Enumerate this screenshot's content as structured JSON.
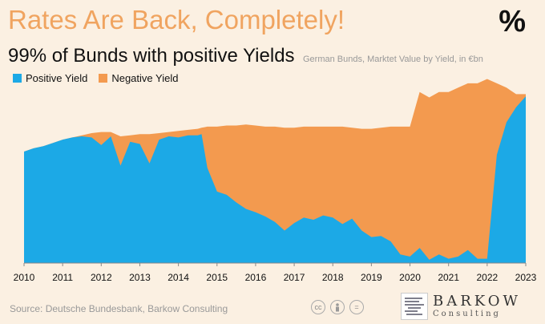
{
  "headline": "Rates Are Back, Completely!",
  "percent_mark": "%",
  "subtitle": "99% of Bunds with positive Yields",
  "subtitle_note": "German Bunds, Marktet Value by Yield, in €bn",
  "source": "Source: Deutsche Bundesbank, Barkow Consulting",
  "license_icons": [
    "cc",
    "person",
    "="
  ],
  "logo": {
    "name": "BARKOW",
    "sub": "Consulting"
  },
  "colors": {
    "positive": "#1ca9e6",
    "negative": "#f39a4f",
    "background": "#fbf0e2"
  },
  "chart_data": {
    "type": "area",
    "stacked": true,
    "x_ticks": [
      "2010",
      "2011",
      "2012",
      "2013",
      "2014",
      "2015",
      "2016",
      "2017",
      "2018",
      "2019",
      "2020",
      "2021",
      "2022",
      "2023"
    ],
    "xlim": [
      2010,
      2023
    ],
    "legend_position": "top-left",
    "grid": false,
    "x": [
      2010.0,
      2010.25,
      2010.5,
      2010.75,
      2011.0,
      2011.25,
      2011.5,
      2011.75,
      2012.0,
      2012.25,
      2012.5,
      2012.75,
      2013.0,
      2013.25,
      2013.5,
      2013.75,
      2014.0,
      2014.25,
      2014.5,
      2014.6,
      2014.75,
      2015.0,
      2015.25,
      2015.5,
      2015.75,
      2016.0,
      2016.25,
      2016.5,
      2016.75,
      2017.0,
      2017.25,
      2017.5,
      2017.75,
      2018.0,
      2018.25,
      2018.5,
      2018.75,
      2019.0,
      2019.25,
      2019.5,
      2019.75,
      2020.0,
      2020.25,
      2020.5,
      2020.75,
      2021.0,
      2021.25,
      2021.5,
      2021.75,
      2022.0,
      2022.25,
      2022.5,
      2022.75,
      2023.0
    ],
    "series": [
      {
        "name": "Positive Yield",
        "values": [
          1030,
          1060,
          1080,
          1110,
          1140,
          1160,
          1170,
          1160,
          1090,
          1170,
          900,
          1120,
          1100,
          920,
          1140,
          1170,
          1160,
          1180,
          1180,
          1190,
          880,
          660,
          630,
          560,
          500,
          470,
          430,
          380,
          300,
          370,
          420,
          400,
          440,
          420,
          360,
          410,
          300,
          240,
          250,
          200,
          80,
          60,
          140,
          30,
          80,
          40,
          60,
          120,
          40,
          40,
          1000,
          1300,
          1440,
          1540
        ]
      },
      {
        "name": "Negative Yield",
        "values": [
          0,
          0,
          0,
          0,
          0,
          0,
          10,
          40,
          120,
          40,
          270,
          60,
          90,
          270,
          60,
          40,
          60,
          50,
          60,
          60,
          380,
          600,
          640,
          710,
          780,
          800,
          830,
          880,
          950,
          880,
          840,
          860,
          820,
          840,
          900,
          840,
          940,
          1000,
          1000,
          1060,
          1180,
          1200,
          1440,
          1500,
          1500,
          1540,
          1560,
          1540,
          1620,
          1660,
          660,
          320,
          120,
          20
        ]
      }
    ],
    "ylim": [
      0,
      1800
    ]
  }
}
